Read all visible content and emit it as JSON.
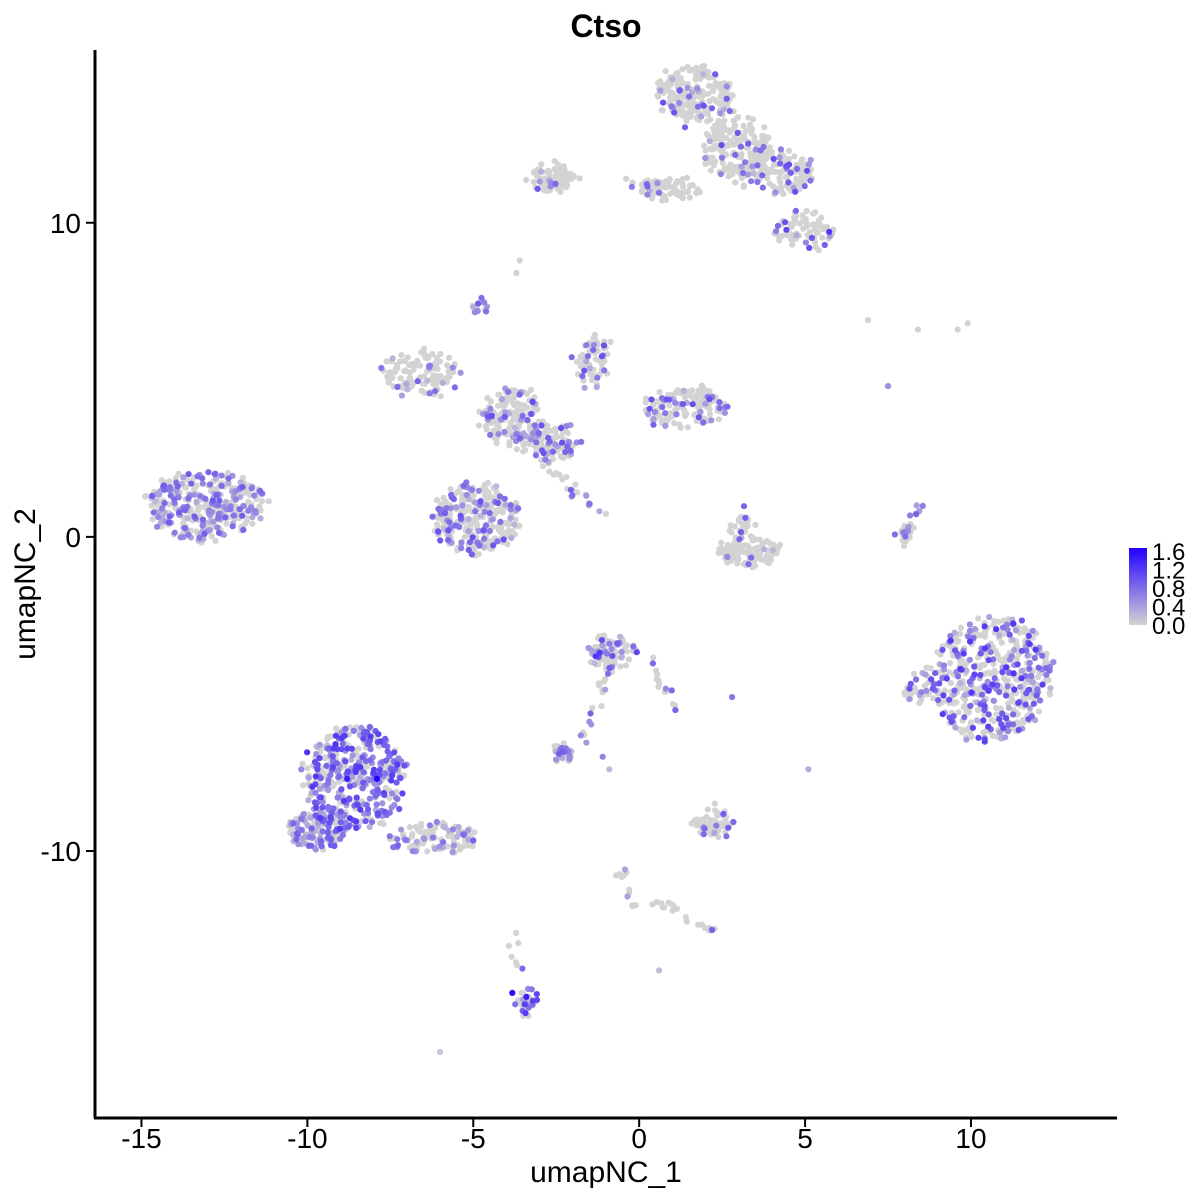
{
  "chart_data": {
    "type": "scatter",
    "title": "Ctso",
    "xlabel": "umapNC_1",
    "ylabel": "umapNC_2",
    "xlim": [
      -16.4,
      14.4
    ],
    "ylim": [
      -18.5,
      15.5
    ],
    "x_ticks": [
      -15,
      -10,
      -5,
      0,
      5,
      10
    ],
    "x_tick_labels": [
      "-15",
      "-10",
      "-5",
      "0",
      "5",
      "10"
    ],
    "y_ticks": [
      -10,
      0,
      10
    ],
    "y_tick_labels": [
      "-10",
      "0",
      "10"
    ],
    "grid": false,
    "legend": {
      "position": "right",
      "type": "colorbar",
      "range": [
        0.0,
        1.6
      ],
      "ticks": [
        "1.6",
        "1.2",
        "0.8",
        "0.4",
        "0.0"
      ],
      "low_color": "#d3d3d3",
      "high_color": "#2200ff"
    },
    "clusters": [
      {
        "cx": -13.1,
        "cy": 1.0,
        "rx": 1.8,
        "ry": 1.1,
        "n": 320,
        "expr_frac": 0.45,
        "expr_max": 0.9
      },
      {
        "cx": -8.6,
        "cy": -7.7,
        "rx": 1.5,
        "ry": 1.7,
        "n": 420,
        "expr_frac": 0.6,
        "expr_max": 1.2
      },
      {
        "cx": -9.6,
        "cy": -9.3,
        "rx": 0.9,
        "ry": 0.6,
        "n": 120,
        "expr_frac": 0.5,
        "expr_max": 0.9
      },
      {
        "cx": -6.2,
        "cy": -9.6,
        "rx": 1.3,
        "ry": 0.45,
        "n": 110,
        "expr_frac": 0.35,
        "expr_max": 0.9
      },
      {
        "cx": -4.9,
        "cy": 0.6,
        "rx": 1.3,
        "ry": 1.1,
        "n": 300,
        "expr_frac": 0.3,
        "expr_max": 1.0
      },
      {
        "cx": -6.7,
        "cy": 5.2,
        "rx": 1.2,
        "ry": 0.7,
        "n": 120,
        "expr_frac": 0.15,
        "expr_max": 0.9
      },
      {
        "cx": -3.8,
        "cy": 3.8,
        "rx": 1.0,
        "ry": 0.9,
        "n": 160,
        "expr_frac": 0.25,
        "expr_max": 1.0
      },
      {
        "cx": -2.6,
        "cy": 3.0,
        "rx": 0.7,
        "ry": 0.6,
        "n": 90,
        "expr_frac": 0.35,
        "expr_max": 1.0
      },
      {
        "cx": -1.4,
        "cy": 5.6,
        "rx": 0.5,
        "ry": 0.8,
        "n": 70,
        "expr_frac": 0.25,
        "expr_max": 1.0
      },
      {
        "cx": 1.3,
        "cy": 4.1,
        "rx": 1.3,
        "ry": 0.6,
        "n": 140,
        "expr_frac": 0.2,
        "expr_max": 1.0
      },
      {
        "cx": 1.7,
        "cy": 14.1,
        "rx": 1.1,
        "ry": 0.9,
        "n": 220,
        "expr_frac": 0.12,
        "expr_max": 1.0
      },
      {
        "cx": 2.9,
        "cy": 12.4,
        "rx": 1.0,
        "ry": 1.0,
        "n": 170,
        "expr_frac": 0.1,
        "expr_max": 1.0
      },
      {
        "cx": 4.2,
        "cy": 11.6,
        "rx": 1.1,
        "ry": 0.7,
        "n": 130,
        "expr_frac": 0.2,
        "expr_max": 1.0
      },
      {
        "cx": 5.0,
        "cy": 9.7,
        "rx": 0.9,
        "ry": 0.6,
        "n": 80,
        "expr_frac": 0.25,
        "expr_max": 1.2
      },
      {
        "cx": -2.6,
        "cy": 11.4,
        "rx": 0.7,
        "ry": 0.4,
        "n": 80,
        "expr_frac": 0.1,
        "expr_max": 1.0
      },
      {
        "cx": 1.0,
        "cy": 11.1,
        "rx": 0.9,
        "ry": 0.3,
        "n": 60,
        "expr_frac": 0.1,
        "expr_max": 1.0
      },
      {
        "cx": 3.3,
        "cy": -0.5,
        "rx": 0.9,
        "ry": 0.45,
        "n": 110,
        "expr_frac": 0.06,
        "expr_max": 1.0
      },
      {
        "cx": 3.1,
        "cy": 0.4,
        "rx": 0.35,
        "ry": 0.5,
        "n": 25,
        "expr_frac": 0.1,
        "expr_max": 1.0
      },
      {
        "cx": 10.6,
        "cy": -4.5,
        "rx": 1.8,
        "ry": 2.0,
        "n": 500,
        "expr_frac": 0.35,
        "expr_max": 1.2
      },
      {
        "cx": 8.5,
        "cy": -4.8,
        "rx": 0.5,
        "ry": 0.5,
        "n": 40,
        "expr_frac": 0.3,
        "expr_max": 1.0
      },
      {
        "cx": -0.8,
        "cy": -3.7,
        "rx": 0.7,
        "ry": 0.6,
        "n": 90,
        "expr_frac": 0.25,
        "expr_max": 1.2
      },
      {
        "cx": -2.3,
        "cy": -6.9,
        "rx": 0.35,
        "ry": 0.25,
        "n": 30,
        "expr_frac": 0.5,
        "expr_max": 1.0
      },
      {
        "cx": 2.2,
        "cy": -9.1,
        "rx": 0.6,
        "ry": 0.4,
        "n": 60,
        "expr_frac": 0.2,
        "expr_max": 1.0
      },
      {
        "cx": -3.4,
        "cy": -14.8,
        "rx": 0.3,
        "ry": 0.5,
        "n": 30,
        "expr_frac": 0.6,
        "expr_max": 1.5
      },
      {
        "cx": -4.7,
        "cy": 7.3,
        "rx": 0.2,
        "ry": 0.25,
        "n": 15,
        "expr_frac": 0.5,
        "expr_max": 0.9
      }
    ],
    "trails": [
      {
        "from": [
          -3.6,
          3.2
        ],
        "to": [
          -1.2,
          0.7
        ],
        "n": 35,
        "expr_frac": 0.3
      },
      {
        "from": [
          -1.0,
          -4.2
        ],
        "to": [
          -1.7,
          -6.5
        ],
        "n": 18,
        "expr_frac": 0.3
      },
      {
        "from": [
          0.3,
          -4.0
        ],
        "to": [
          1.2,
          -5.6
        ],
        "n": 15,
        "expr_frac": 0.2
      },
      {
        "from": [
          -0.6,
          -10.5
        ],
        "to": [
          -0.2,
          -11.8
        ],
        "n": 12,
        "expr_frac": 0.2
      },
      {
        "from": [
          0.6,
          -11.6
        ],
        "to": [
          2.4,
          -12.6
        ],
        "n": 18,
        "expr_frac": 0.2
      },
      {
        "from": [
          8.2,
          0.3
        ],
        "to": [
          7.8,
          0.1
        ],
        "n": 8,
        "expr_frac": 0.3
      },
      {
        "from": [
          8.5,
          1.1
        ],
        "to": [
          7.8,
          -0.3
        ],
        "n": 20,
        "expr_frac": 0.3
      },
      {
        "from": [
          -0.5,
          11.3
        ],
        "to": [
          0.8,
          11.0
        ],
        "n": 14,
        "expr_frac": 0.3
      },
      {
        "from": [
          -3.9,
          -12.3
        ],
        "to": [
          -3.4,
          -14.5
        ],
        "n": 8,
        "expr_frac": 0.2
      }
    ],
    "points": [
      {
        "x": -6.0,
        "y": -16.4,
        "v": 0.1
      },
      {
        "x": 0.6,
        "y": -13.8,
        "v": 0.2
      },
      {
        "x": 6.9,
        "y": 6.9,
        "v": 0.0
      },
      {
        "x": 8.4,
        "y": 6.6,
        "v": 0.0
      },
      {
        "x": 9.6,
        "y": 6.6,
        "v": 0.0
      },
      {
        "x": 9.9,
        "y": 6.8,
        "v": 0.0
      },
      {
        "x": 7.5,
        "y": 4.8,
        "v": 0.5
      },
      {
        "x": 5.1,
        "y": -7.4,
        "v": 0.3
      },
      {
        "x": 2.8,
        "y": -5.1,
        "v": 0.7
      },
      {
        "x": -1.1,
        "y": -7.0,
        "v": 0.6
      },
      {
        "x": -0.9,
        "y": -7.4,
        "v": 0.2
      },
      {
        "x": -7.9,
        "y": -7.7,
        "v": 1.6
      },
      {
        "x": -8.8,
        "y": -7.7,
        "v": 1.4
      },
      {
        "x": 0.4,
        "y": -11.7,
        "v": 0.0
      },
      {
        "x": -3.6,
        "y": 8.8,
        "v": 0.0
      },
      {
        "x": -3.7,
        "y": 8.4,
        "v": 0.0
      }
    ]
  }
}
